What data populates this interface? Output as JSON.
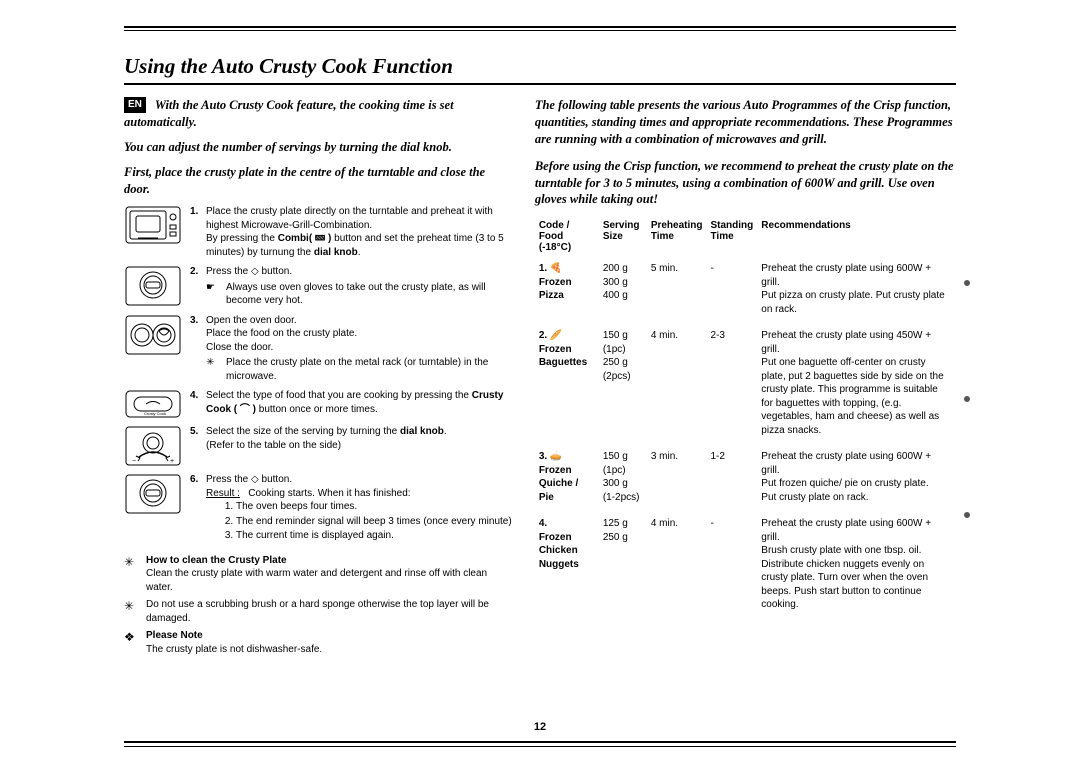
{
  "page": {
    "title": "Using the Auto Crusty Cook Function",
    "lang_badge": "EN",
    "page_number": "12"
  },
  "left": {
    "intro1": "With the Auto Crusty Cook feature, the cooking time is set automatically.",
    "intro2": "You can adjust the number of servings by turning the dial knob.",
    "intro3": "First, place the crusty plate in the centre of the turntable and close the door.",
    "steps": [
      {
        "num": "1.",
        "text": "Place the crusty plate directly on the turntable and preheat it with highest Microwave-Grill-Combination.",
        "text2_pre": "By pressing the ",
        "text2_b": "Combi( 🝙 )",
        "text2_post": " button and set the preheat time (3 to 5 minutes) by turnung the ",
        "text2_b2": "dial knob",
        "text2_end": "."
      },
      {
        "num": "2.",
        "text_pre": "Press the  ",
        "text_sym": "◇",
        "text_post": "  button.",
        "sub_sym": "☛",
        "sub": "Always use oven gloves to take out the crusty plate, as will become very hot."
      },
      {
        "num": "3.",
        "text": "Open the oven door.",
        "line2": "Place the food on the crusty plate.",
        "line3": "Close the door.",
        "sub_sym": "✳",
        "sub": "Place the crusty plate on the metal rack (or turntable) in the microwave."
      },
      {
        "num": "4.",
        "text_pre": "Select the type of food that you are cooking by pressing the ",
        "text_b": "Crusty Cook ( ⌒ )",
        "text_post": " button once or more times."
      },
      {
        "num": "5.",
        "text_pre": "Select the size of the serving by turning the ",
        "text_b": "dial knob",
        "text_post": ".",
        "line2": "(Refer to the table on the side)"
      },
      {
        "num": "6.",
        "text_pre": "Press the  ",
        "text_sym": "◇",
        "text_post": "  button.",
        "result_lbl": "Result :",
        "result_intro": "Cooking starts. When it has finished:",
        "results": [
          "The oven beeps four times.",
          "The end reminder signal will beep 3 times (once every minute)",
          "The current time is displayed again."
        ]
      }
    ],
    "notes": {
      "clean_h": "How to clean the Crusty Plate",
      "clean_t": "Clean the crusty plate with warm water and detergent and rinse off with clean water.",
      "warn_t": "Do not use a scrubbing brush or a hard sponge otherwise the top layer will be damaged.",
      "please_h": "Please Note",
      "please_t": "The crusty plate is not dishwasher-safe."
    }
  },
  "right": {
    "intro1": "The following table presents the various Auto Programmes of the Crisp function, quantities, standing times and appropriate recommendations. These Programmes are running with a combination of microwaves and grill.",
    "intro2": "Before using the Crisp function, we recommend to preheat the crusty plate on the turntable for 3 to 5 minutes, using a combination of 600W and grill. Use oven gloves while taking out!",
    "headers": {
      "code": "Code / Food (-18°C)",
      "serving": "Serving Size",
      "preheat": "Preheating Time",
      "standing": "Standing Time",
      "rec": "Recommendations"
    },
    "rows": [
      {
        "code": "1.  🍕\nFrozen Pizza",
        "serving": "200 g\n300 g\n400 g",
        "preheat": "5 min.",
        "standing": "-",
        "rec": "Preheat the crusty plate using 600W + grill.\nPut pizza on crusty plate. Put crusty plate on rack."
      },
      {
        "code": "2.  🥖\nFrozen Baguettes",
        "serving": "150 g (1pc)\n250 g (2pcs)",
        "preheat": "4 min.",
        "standing": "2-3",
        "rec": "Preheat the crusty plate using 450W + grill.\nPut one baguette off-center on crusty plate, put 2 baguettes side by side on the crusty plate. This programme is suitable for baguettes with topping, (e.g. vegetables, ham and cheese) as well as pizza snacks."
      },
      {
        "code": "3.  🥧\nFrozen Quiche / Pie",
        "serving": "150 g (1pc)\n300 g (1-2pcs)",
        "preheat": "3 min.",
        "standing": "1-2",
        "rec": "Preheat the crusty plate using 600W + grill.\nPut frozen quiche/ pie on crusty plate.\nPut crusty plate on rack."
      },
      {
        "code": "4.\nFrozen Chicken Nuggets",
        "serving": "125 g\n250 g",
        "preheat": "4 min.",
        "standing": "-",
        "rec": "Preheat the crusty plate using 600W + grill.\nBrush crusty plate with one tbsp. oil. Distribute chicken nuggets evenly on crusty plate. Turn over when the oven beeps. Push start button to continue cooking."
      }
    ]
  }
}
